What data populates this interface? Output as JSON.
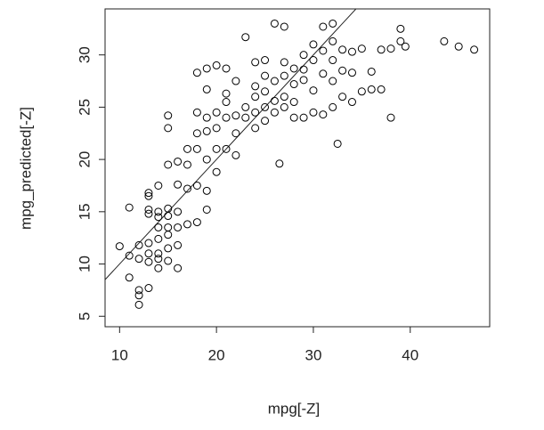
{
  "chart_data": {
    "type": "scatter",
    "x_label": "mpg[-Z]",
    "y_label": "mpg_predicted[-Z]",
    "xlim": [
      8.5,
      48.2
    ],
    "ylim": [
      4,
      34.4
    ],
    "xticks": [
      10,
      20,
      30,
      40
    ],
    "yticks": [
      5,
      10,
      15,
      20,
      25,
      30
    ],
    "color": "#000000",
    "reference_line": {
      "intercept": 0,
      "slope": 1
    },
    "x": [
      10,
      11,
      11,
      11,
      12,
      12,
      12,
      12,
      12,
      13,
      13,
      13,
      13,
      13,
      13,
      13,
      13,
      14,
      14,
      14,
      14,
      14,
      14,
      14,
      14,
      15,
      15,
      15,
      15,
      15,
      15,
      15,
      15,
      15,
      16,
      16,
      16,
      16,
      16,
      16,
      17,
      17,
      17,
      17,
      18,
      18,
      18,
      18,
      18,
      18,
      19,
      19,
      19,
      19,
      19,
      19,
      19,
      20,
      20,
      20,
      20,
      20,
      21,
      21,
      21,
      21,
      21,
      22,
      22,
      22,
      22,
      23,
      23,
      23,
      24,
      24,
      24,
      24,
      24,
      25,
      25,
      25,
      25,
      25,
      26,
      26,
      26,
      26,
      26.5,
      27,
      27,
      27,
      27,
      27,
      28,
      28,
      28,
      28,
      29,
      29,
      29,
      29,
      30,
      30,
      30,
      30,
      31,
      31,
      31,
      31,
      32,
      32,
      32,
      32,
      32,
      32.5,
      33,
      33,
      33,
      34,
      34,
      34,
      35,
      35,
      36,
      36,
      37,
      37,
      38,
      38,
      39,
      39,
      39.5,
      43.5,
      45,
      46.6
    ],
    "y": [
      11.7,
      15.4,
      8.7,
      10.8,
      6.1,
      7.0,
      7.5,
      10.5,
      11.8,
      7.7,
      10.2,
      11,
      12,
      14.8,
      15.2,
      16.5,
      16.8,
      9.6,
      10.5,
      11,
      12.4,
      13.5,
      14.5,
      15,
      17.5,
      10.3,
      11.5,
      12.8,
      13.5,
      14.6,
      15.3,
      19.5,
      23,
      24.2,
      9.6,
      11.8,
      13.5,
      15,
      17.6,
      19.8,
      13.8,
      17.2,
      19.5,
      21,
      14,
      17.5,
      21,
      22.5,
      24.5,
      28.3,
      15.2,
      17,
      20,
      22.7,
      24,
      26.7,
      28.7,
      18.8,
      21,
      23,
      24.5,
      29,
      21,
      24,
      25.5,
      26.3,
      28.7,
      20.4,
      22.5,
      24.2,
      27.5,
      24,
      25,
      31.7,
      23,
      24.5,
      26,
      27,
      29.3,
      23.7,
      25,
      26.5,
      28,
      29.5,
      24.5,
      25.6,
      27.5,
      33,
      19.6,
      25,
      26,
      28,
      29.3,
      32.7,
      24,
      25.5,
      27.2,
      28.7,
      24,
      27.6,
      28.6,
      30,
      24.5,
      26.6,
      29.5,
      31,
      24.3,
      28.2,
      30.4,
      32.7,
      25,
      27.5,
      29.5,
      31.3,
      33,
      21.5,
      26,
      28.5,
      30.5,
      25.5,
      28.3,
      30.3,
      26.5,
      30.6,
      26.7,
      28.4,
      26.7,
      30.5,
      24,
      30.6,
      31.3,
      32.5,
      30.8,
      31.3,
      30.8,
      30.5
    ]
  }
}
